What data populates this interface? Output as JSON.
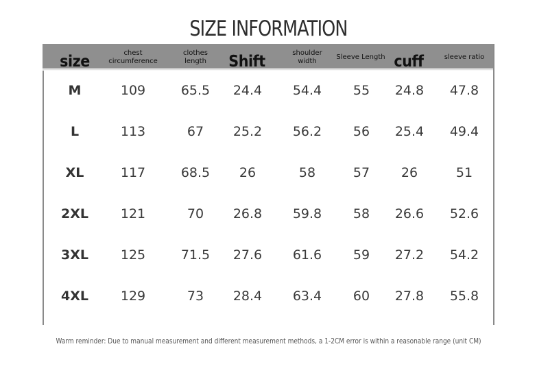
{
  "title": "SIZE INFORMATION",
  "headers": [
    "size",
    "chest circumference",
    "clothes length",
    "Shift",
    "shoulder width",
    "Sleeve Length",
    "cuff",
    "sleeve ratio"
  ],
  "rows": [
    [
      "M",
      "109",
      "65.5",
      "24.4",
      "54.4",
      "55",
      "24.8",
      "47.8"
    ],
    [
      "L",
      "113",
      "67",
      "25.2",
      "56.2",
      "56",
      "25.4",
      "49.4"
    ],
    [
      "XL",
      "117",
      "68.5",
      "26",
      "58",
      "57",
      "26",
      "51"
    ],
    [
      "2XL",
      "121",
      "70",
      "26.8",
      "59.8",
      "58",
      "26.6",
      "52.6"
    ],
    [
      "3XL",
      "125",
      "71.5",
      "27.6",
      "61.6",
      "59",
      "27.2",
      "54.2"
    ],
    [
      "4XL",
      "129",
      "73",
      "28.4",
      "63.4",
      "60",
      "27.8",
      "55.8"
    ]
  ],
  "footnote": "Warm reminder: Due to manual measurement and different measurement methods, a 1-2CM error is within a reasonable range (unit CM)"
}
